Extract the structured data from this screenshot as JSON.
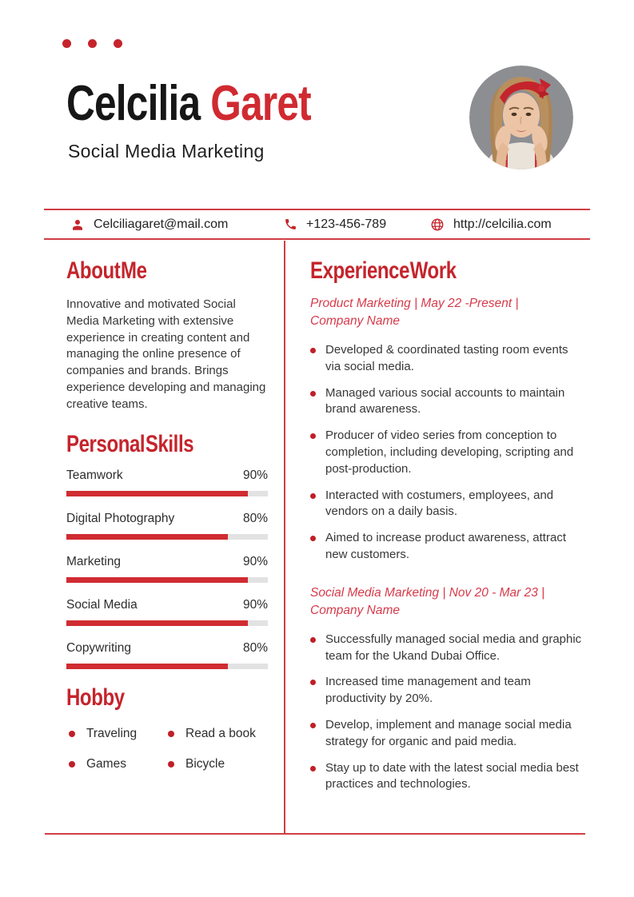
{
  "colors": {
    "accent": "#c5242c",
    "title_red": "#d02a31",
    "job_red": "#d63a4a",
    "bullet": "#c01f28",
    "line": "#cf3e44",
    "bar_track": "#e2e2e2",
    "bar_fill": "#d02c32",
    "text": "#333333",
    "heading_black": "#161616",
    "photo_bg": "#8d8e92"
  },
  "header": {
    "name_black": "Celcilia",
    "name_red": "Garet",
    "subtitle": "Social Media Marketing"
  },
  "contact": {
    "email": {
      "icon": "person-icon",
      "text": "Celciliagaret@mail.com"
    },
    "phone": {
      "icon": "phone-icon",
      "text": "+123-456-789"
    },
    "website": {
      "icon": "globe-icon",
      "text": "http://celcilia.com"
    }
  },
  "about": {
    "heading": "About Me",
    "text": "Innovative and motivated Social Media Marketing with extensive experience in creating content and managing the online presence of companies and brands. Brings experience developing and managing creative teams."
  },
  "skills": {
    "heading": "Personal Skills",
    "items": [
      {
        "label": "Teamwork",
        "percent": "90%",
        "value": 90
      },
      {
        "label": "Digital Photography",
        "percent": "80%",
        "value": 80
      },
      {
        "label": "Marketing",
        "percent": "90%",
        "value": 90
      },
      {
        "label": "Social Media",
        "percent": "90%",
        "value": 90
      },
      {
        "label": "Copywriting",
        "percent": "80%",
        "value": 80
      }
    ]
  },
  "hobby": {
    "heading": "Hobby",
    "items": [
      "Traveling",
      "Read a book",
      "Games",
      "Bicycle"
    ]
  },
  "experience": {
    "heading": "Experience Work",
    "jobs": [
      {
        "title": "Product Marketing | May 22 -Present | Company Name",
        "bullets": [
          "Developed & coordinated tasting room events via social media.",
          "Managed various social accounts to maintain brand awareness.",
          "Producer of video series from conception to completion, including developing, scripting and post-production.",
          "Interacted with costumers, employees, and vendors on a daily basis.",
          "Aimed to increase product awareness, attract new customers."
        ]
      },
      {
        "title": "Social Media Marketing | Nov 20 - Mar 23 | Company Name",
        "bullets": [
          "Successfully managed social media and graphic team for the Ukand Dubai Office.",
          "Increased time management and team productivity by 20%.",
          "Develop, implement and manage social media strategy for organic and paid media.",
          "Stay up to date with the latest social media best practices and technologies."
        ]
      }
    ]
  }
}
